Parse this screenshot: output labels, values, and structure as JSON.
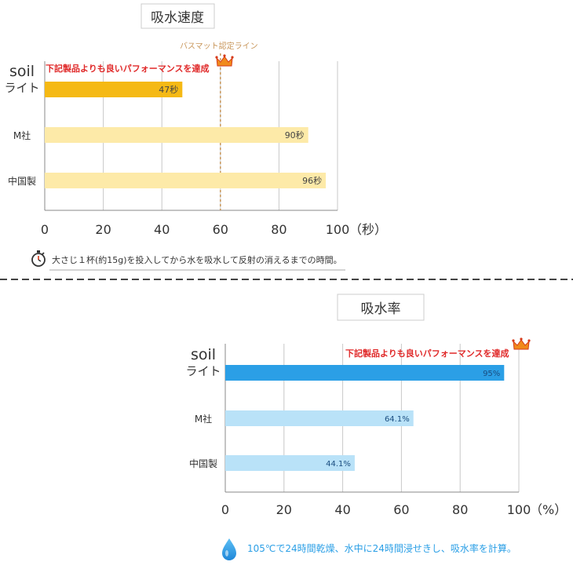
{
  "chart_data": [
    {
      "type": "bar",
      "orientation": "horizontal",
      "title": "吸水速度",
      "categories": [
        "soil\nライト",
        "M社",
        "中国製"
      ],
      "values": [
        47,
        90,
        96
      ],
      "value_labels": [
        "47秒",
        "90秒",
        "96秒"
      ],
      "xticks": [
        "0",
        "20",
        "40",
        "60",
        "80",
        "100"
      ],
      "xlim": [
        0,
        100
      ],
      "unit": "（秒）",
      "grid": true,
      "reference_line": {
        "value": 60,
        "label": "バスマット認定ライン"
      },
      "highlight_note": "下記製品よりも良いパフォーマンスを達成",
      "footnote": "大さじ１杯(約15g)を投入してから水を吸水して反射の消えるまでの時間。",
      "colors": {
        "highlight": "#f5b914",
        "other": "#fdeaa8",
        "reference": "#c8965a",
        "note": "#e02a2a"
      }
    },
    {
      "type": "bar",
      "orientation": "horizontal",
      "title": "吸水率",
      "categories": [
        "soil\nライト",
        "M社",
        "中国製"
      ],
      "values": [
        95,
        64.1,
        44.1
      ],
      "value_labels": [
        "95%",
        "64.1%",
        "44.1%"
      ],
      "xticks": [
        "0",
        "20",
        "40",
        "60",
        "80",
        "100"
      ],
      "xlim": [
        0,
        100
      ],
      "unit": "（%）",
      "grid": true,
      "highlight_note": "下記製品よりも良いパフォーマンスを達成",
      "footnote": "105℃で24時間乾燥、水中に24時間浸せきし、吸水率を計算。",
      "colors": {
        "highlight": "#2b9fe6",
        "other": "#b9e2f8",
        "note": "#e02a2a",
        "footnote": "#2b9fe6",
        "value_text": "#1a4d80"
      }
    }
  ]
}
